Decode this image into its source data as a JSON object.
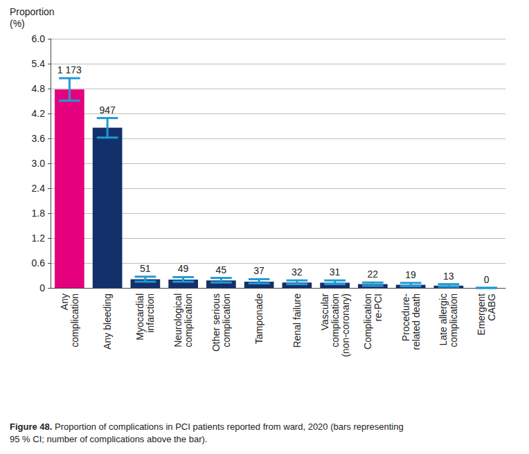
{
  "chart_data": {
    "type": "bar",
    "y_label": "Proportion\n(%)",
    "caption": {
      "label": "Figure 48.",
      "text": "Proportion of complications in PCI patients reported from ward, 2020 (bars representing\n95 % CI; number of complications above the bar)."
    },
    "categories": [
      "Any\ncomplication",
      "Any bleeding",
      "Myocardial\ninfarction",
      "Neurological\ncomplication",
      "Other serious\ncomplication",
      "Tamponade",
      "Renal failure",
      "Vascular\ncomplication\n(non-coronary)",
      "Complication\nre-PCI",
      "Procedure-\nrelated death",
      "Late allergic\ncomplication",
      "Emergent\nCABG"
    ],
    "values": [
      4.78,
      3.86,
      0.21,
      0.2,
      0.18,
      0.15,
      0.13,
      0.126,
      0.09,
      0.077,
      0.053,
      0
    ],
    "ci_low": [
      4.51,
      3.62,
      0.15,
      0.15,
      0.13,
      0.11,
      0.09,
      0.09,
      0.05,
      0.04,
      0.03,
      0
    ],
    "ci_high": [
      5.05,
      4.09,
      0.27,
      0.26,
      0.24,
      0.21,
      0.18,
      0.18,
      0.13,
      0.12,
      0.09,
      0
    ],
    "counts": [
      {
        "value": 1173,
        "label": "1 173"
      },
      947,
      51,
      49,
      45,
      37,
      32,
      31,
      22,
      19,
      13,
      0
    ],
    "colors": [
      "#e5007d",
      "#14306b",
      "#14306b",
      "#14306b",
      "#14306b",
      "#14306b",
      "#14306b",
      "#14306b",
      "#14306b",
      "#14306b",
      "#14306b",
      "#14306b"
    ],
    "error_bar_color": "#1f9ad6",
    "ylim": [
      0,
      6
    ],
    "yticks": [
      0,
      0.6,
      1.2,
      1.8,
      2.4,
      {
        "value": 3,
        "label": "3.0"
      },
      3.6,
      4.2,
      4.8,
      5.4,
      {
        "value": 6,
        "label": "6.0"
      }
    ],
    "grid": true
  }
}
